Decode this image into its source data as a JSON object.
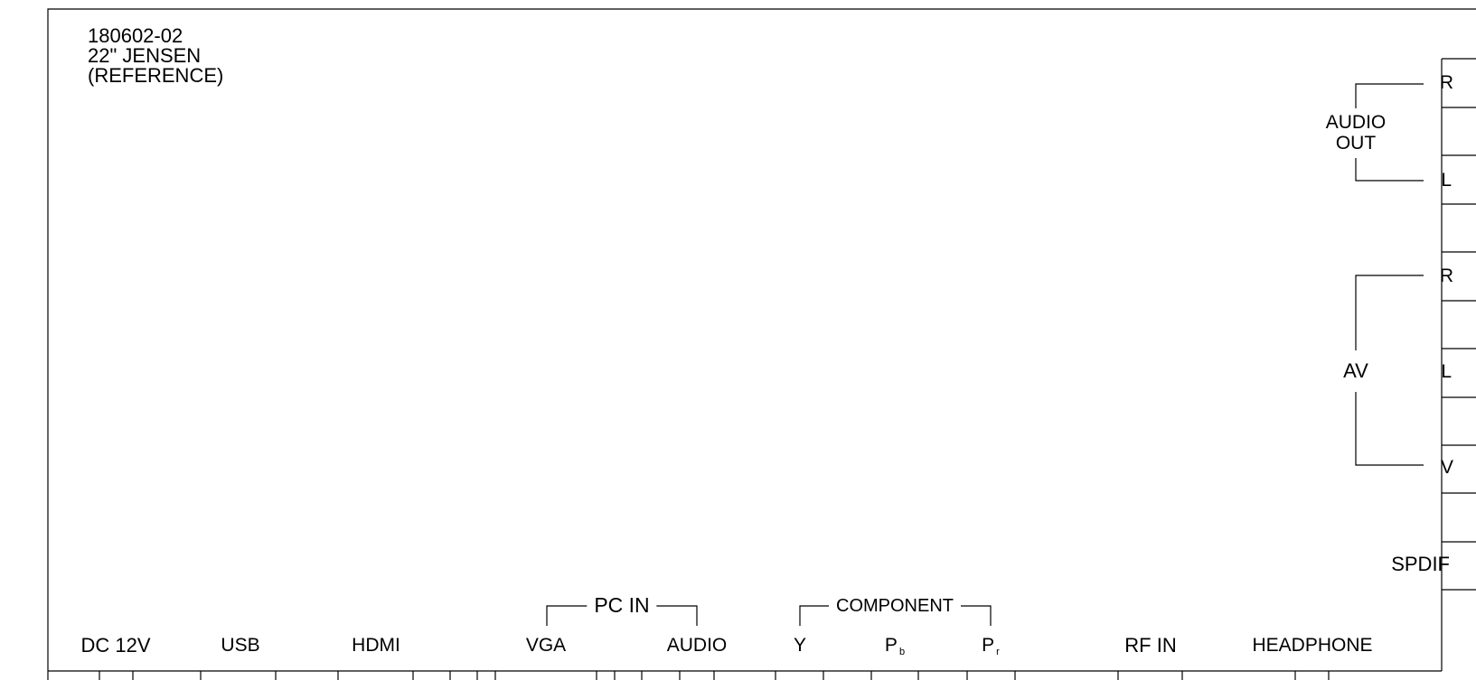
{
  "header": {
    "line1": "180602-02",
    "line2": "22\" JENSEN",
    "line3": "(REFERENCE)"
  },
  "bottom_ports": [
    {
      "id": "dc",
      "label": "DC 12V"
    },
    {
      "id": "usb",
      "label": "USB"
    },
    {
      "id": "hdmi",
      "label": "HDMI"
    },
    {
      "id": "vga",
      "label": "VGA"
    },
    {
      "id": "pc_audio",
      "label": "AUDIO"
    },
    {
      "id": "y",
      "label": "Y"
    },
    {
      "id": "pb",
      "label": "P",
      "sub": "b"
    },
    {
      "id": "pr",
      "label": "P",
      "sub": "r"
    },
    {
      "id": "rf",
      "label": "RF IN"
    },
    {
      "id": "headphone",
      "label": "HEADPHONE"
    }
  ],
  "groups": {
    "pc_in": "PC IN",
    "component": "COMPONENT",
    "audio_out_line1": "AUDIO",
    "audio_out_line2": "OUT",
    "av": "AV"
  },
  "right_ports": [
    {
      "id": "aout_r",
      "label": "R"
    },
    {
      "id": "aout_l",
      "label": "L"
    },
    {
      "id": "av_r",
      "label": "R"
    },
    {
      "id": "av_l",
      "label": "L"
    },
    {
      "id": "av_v",
      "label": "V"
    },
    {
      "id": "spdif",
      "label": "SPDIF"
    }
  ]
}
